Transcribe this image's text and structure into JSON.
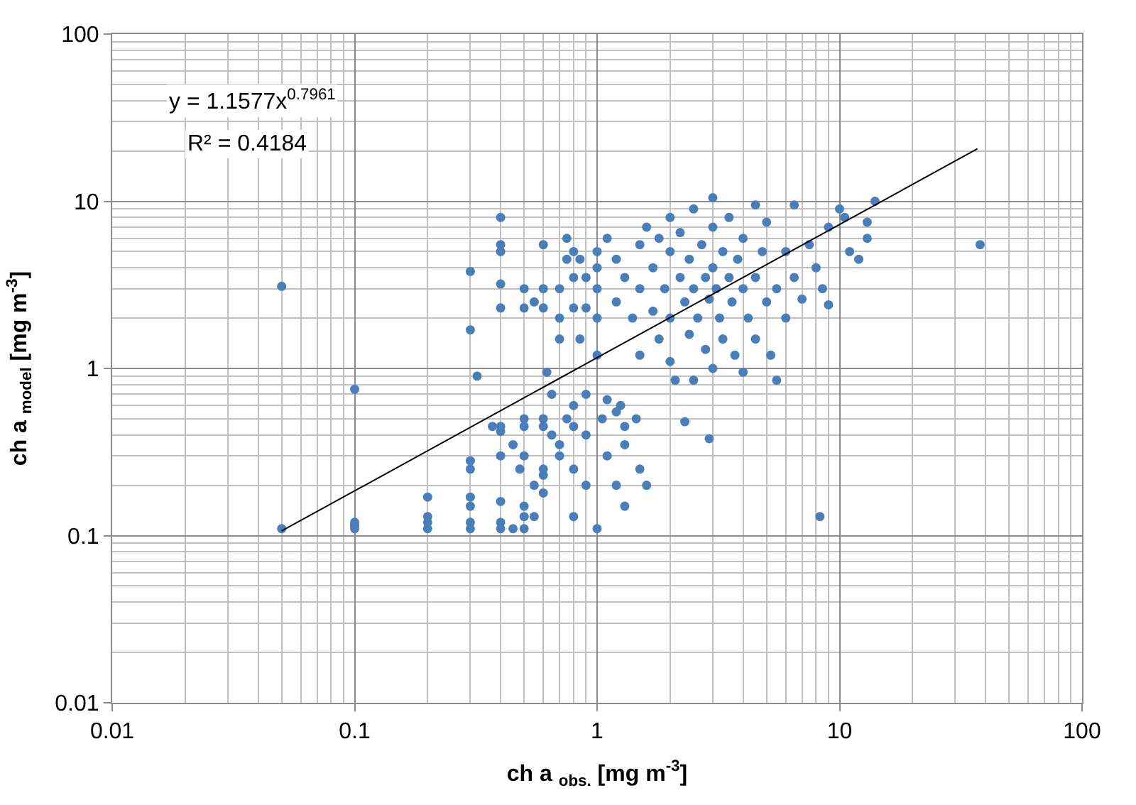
{
  "chart_data": {
    "type": "scatter",
    "xlabel": "ch a $_{obs.}$ [mg m$^{-3}$]",
    "ylabel": "ch a $_{model}$ [mg m$^{-3}$]",
    "log": "xy",
    "grid": true,
    "legend": false,
    "xlim": [
      0.01,
      100
    ],
    "xticks": [
      0.01,
      0.1,
      1,
      10,
      100
    ],
    "ylim": [
      0.01,
      100
    ],
    "yticks": [
      0.01,
      0.1,
      1,
      10,
      100
    ],
    "annotations": [
      "y = 1.1577x$^{0.7961}$",
      "R² = 0.4184"
    ],
    "series": [
      {
        "color": "#4a7ebb",
        "marker": "circle",
        "x": [
          0.05,
          0.05,
          0.1,
          0.1,
          0.1,
          0.1,
          0.2,
          0.2,
          0.2,
          0.2,
          0.3,
          0.3,
          0.3,
          0.3,
          0.3,
          0.3,
          0.3,
          0.3,
          0.32,
          0.4,
          0.4,
          0.4,
          0.4,
          0.4,
          0.4,
          0.4,
          0.4,
          0.4,
          0.4,
          0.4,
          0.37,
          0.45,
          0.5,
          0.5,
          0.5,
          0.5,
          0.5,
          0.5,
          0.5,
          0.5,
          0.48,
          0.45,
          0.55,
          0.55,
          0.55,
          0.6,
          0.6,
          0.6,
          0.6,
          0.6,
          0.6,
          0.6,
          0.6,
          0.62,
          0.65,
          0.65,
          0.7,
          0.7,
          0.7,
          0.7,
          0.7,
          0.75,
          0.75,
          0.75,
          0.8,
          0.8,
          0.8,
          0.8,
          0.8,
          0.8,
          0.8,
          0.85,
          0.85,
          0.9,
          0.9,
          0.9,
          0.9,
          0.9,
          1,
          1,
          1,
          1,
          1,
          1,
          1.05,
          1.1,
          1.2,
          1.1,
          1.2,
          1.3,
          1.3,
          1.3,
          1.5,
          1.6,
          1.25,
          1.45,
          1.1,
          1.2,
          1.3,
          1.2,
          1.4,
          1.5,
          1.5,
          1.5,
          1.6,
          1.7,
          1.7,
          1.8,
          1.8,
          1.9,
          2,
          2,
          2,
          2,
          2.1,
          2.2,
          2.2,
          2.3,
          2.4,
          2.4,
          2.5,
          2.5,
          2.5,
          2.6,
          2.7,
          2.8,
          2.8,
          2.9,
          3,
          3,
          3,
          3,
          3.1,
          3.2,
          3.3,
          3.3,
          3.5,
          3.5,
          3.6,
          3.7,
          3.8,
          4,
          4,
          4,
          4.2,
          4.5,
          4.5,
          4.5,
          4.8,
          5,
          5,
          5.2,
          5.5,
          5.5,
          6,
          6,
          6.5,
          6.5,
          7,
          7.5,
          8,
          8.5,
          9,
          9,
          10,
          10.5,
          11,
          12,
          13,
          14,
          13,
          38,
          2.3,
          2.9,
          8.3
        ],
        "values": [
          3.1,
          0.11,
          0.75,
          0.12,
          0.11,
          0.115,
          0.17,
          0.12,
          0.11,
          0.13,
          3.8,
          1.7,
          0.28,
          0.25,
          0.17,
          0.15,
          0.12,
          0.11,
          0.9,
          8,
          5.5,
          5,
          3.2,
          2.3,
          0.45,
          0.42,
          0.3,
          0.16,
          0.12,
          0.11,
          0.45,
          0.11,
          2.3,
          3,
          0.5,
          0.45,
          0.3,
          0.15,
          0.11,
          0.13,
          0.25,
          0.35,
          2.5,
          0.2,
          0.13,
          5.5,
          3,
          2.3,
          0.5,
          0.45,
          0.25,
          0.23,
          0.18,
          0.95,
          0.7,
          0.4,
          3,
          2,
          1.5,
          0.35,
          0.3,
          6,
          4.5,
          0.5,
          5,
          3.5,
          2.3,
          0.6,
          0.45,
          0.25,
          0.13,
          4.5,
          1.5,
          3.5,
          2.3,
          0.7,
          0.4,
          0.2,
          0.11,
          1.2,
          2,
          3,
          4,
          5,
          0.5,
          0.65,
          0.55,
          0.3,
          0.2,
          0.35,
          0.45,
          0.15,
          0.25,
          0.2,
          0.6,
          0.5,
          6,
          4.5,
          3.5,
          2.5,
          2,
          5.5,
          3,
          1.2,
          7,
          4,
          2.2,
          1.5,
          6,
          3,
          8,
          5,
          2,
          1.1,
          0.85,
          3.5,
          6.5,
          2.5,
          1.6,
          4.5,
          9,
          3,
          0.85,
          2,
          5.5,
          3.5,
          1.3,
          2.6,
          10.5,
          7,
          4,
          1,
          3,
          2,
          5,
          1.5,
          3.5,
          8,
          2.5,
          1.2,
          4.5,
          6,
          3,
          0.95,
          2,
          9.5,
          3.5,
          1.5,
          5,
          2.5,
          7.5,
          1.2,
          3,
          0.85,
          5,
          2,
          3.5,
          9.5,
          2.6,
          5.5,
          4,
          3,
          2.4,
          7,
          9,
          8,
          5,
          4.5,
          7.5,
          10,
          6,
          5.5,
          0.48,
          0.38,
          0.13
        ]
      },
      {
        "type": "line",
        "color": "#000000",
        "line_style": "solid",
        "x": [
          0.05,
          37
        ],
        "values": [
          0.1066,
          20.6
        ]
      }
    ]
  }
}
